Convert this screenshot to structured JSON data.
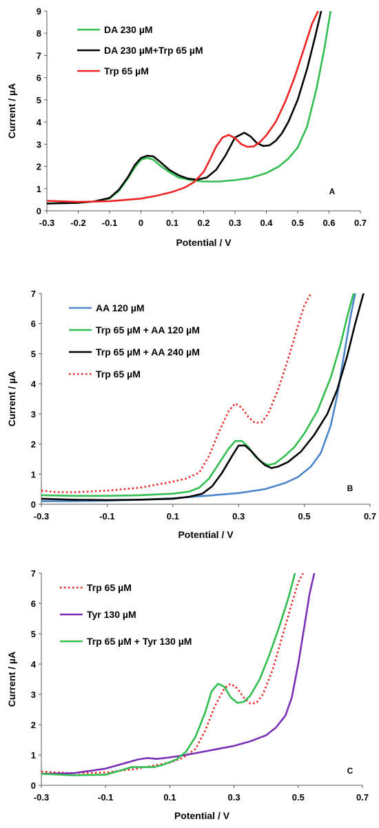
{
  "chart_data": [
    {
      "type": "line",
      "panel_label": "A",
      "xlabel": "Potential / V",
      "ylabel": "Current / µA",
      "xlim": [
        -0.3,
        0.7
      ],
      "ylim": [
        0,
        9
      ],
      "xticks": [
        "-0.3",
        "-0.2",
        "-0.1",
        "0",
        "0.1",
        "0.2",
        "0.3",
        "0.4",
        "0.5",
        "0.6",
        "0.7"
      ],
      "yticks": [
        "0",
        "1",
        "2",
        "3",
        "4",
        "5",
        "6",
        "7",
        "8",
        "9"
      ],
      "grid": false,
      "legend_position": "top-left",
      "series": [
        {
          "name": "DA 230 µM",
          "color": "#2ebd4e",
          "dash": false,
          "x": [
            -0.3,
            -0.2,
            -0.15,
            -0.1,
            -0.07,
            -0.04,
            -0.02,
            0.0,
            0.02,
            0.04,
            0.06,
            0.09,
            0.12,
            0.16,
            0.2,
            0.25,
            0.3,
            0.35,
            0.4,
            0.44,
            0.47,
            0.5,
            0.53,
            0.56,
            0.585,
            0.605
          ],
          "y": [
            0.33,
            0.36,
            0.42,
            0.55,
            0.9,
            1.5,
            1.95,
            2.3,
            2.38,
            2.3,
            2.05,
            1.75,
            1.5,
            1.38,
            1.32,
            1.32,
            1.38,
            1.48,
            1.7,
            2.0,
            2.35,
            2.85,
            3.8,
            5.5,
            7.3,
            9.0
          ]
        },
        {
          "name": "DA 230 µM+Trp 65 µM",
          "color": "#000000",
          "dash": false,
          "x": [
            -0.3,
            -0.2,
            -0.15,
            -0.1,
            -0.07,
            -0.04,
            -0.02,
            0.0,
            0.02,
            0.04,
            0.06,
            0.09,
            0.12,
            0.15,
            0.18,
            0.21,
            0.24,
            0.27,
            0.3,
            0.33,
            0.35,
            0.37,
            0.39,
            0.41,
            0.43,
            0.45,
            0.47,
            0.5,
            0.53,
            0.555,
            0.575
          ],
          "y": [
            0.33,
            0.36,
            0.42,
            0.58,
            0.95,
            1.55,
            2.05,
            2.38,
            2.48,
            2.45,
            2.22,
            1.85,
            1.6,
            1.45,
            1.4,
            1.5,
            1.85,
            2.5,
            3.3,
            3.52,
            3.35,
            3.05,
            2.92,
            2.95,
            3.15,
            3.5,
            4.0,
            5.0,
            6.4,
            7.8,
            9.0
          ]
        },
        {
          "name": "Trp 65 µM",
          "color": "#ee2222",
          "dash": false,
          "x": [
            -0.3,
            -0.2,
            -0.1,
            0.0,
            0.05,
            0.1,
            0.14,
            0.17,
            0.2,
            0.22,
            0.24,
            0.26,
            0.28,
            0.3,
            0.32,
            0.34,
            0.36,
            0.38,
            0.4,
            0.43,
            0.46,
            0.49,
            0.52,
            0.545,
            0.565
          ],
          "y": [
            0.45,
            0.4,
            0.43,
            0.55,
            0.68,
            0.85,
            1.05,
            1.3,
            1.75,
            2.3,
            2.9,
            3.3,
            3.42,
            3.28,
            3.0,
            2.88,
            2.9,
            3.1,
            3.4,
            4.0,
            4.9,
            6.0,
            7.3,
            8.4,
            9.0
          ]
        }
      ]
    },
    {
      "type": "line",
      "panel_label": "B",
      "xlabel": "Potential / V",
      "ylabel": "Current / µA",
      "xlim": [
        -0.3,
        0.7
      ],
      "ylim": [
        0,
        7
      ],
      "xticks": [
        "-0.3",
        "-0.1",
        "0.1",
        "0.3",
        "0.5",
        "0.7"
      ],
      "yticks": [
        "0",
        "1",
        "2",
        "3",
        "4",
        "5",
        "6",
        "7"
      ],
      "grid": false,
      "legend_position": "top-left",
      "series": [
        {
          "name": "AA 120 µM",
          "color": "#4a86c8",
          "dash": false,
          "x": [
            -0.3,
            -0.2,
            -0.1,
            0.0,
            0.1,
            0.2,
            0.3,
            0.38,
            0.44,
            0.48,
            0.52,
            0.55,
            0.58,
            0.6,
            0.62,
            0.64,
            0.655
          ],
          "y": [
            0.1,
            0.1,
            0.12,
            0.15,
            0.2,
            0.28,
            0.37,
            0.5,
            0.7,
            0.9,
            1.25,
            1.7,
            2.6,
            3.6,
            4.9,
            6.2,
            7.0
          ]
        },
        {
          "name": "Trp 65 µM + AA 120 µM",
          "color": "#2ebd4e",
          "dash": false,
          "x": [
            -0.3,
            -0.2,
            -0.1,
            0.0,
            0.1,
            0.15,
            0.18,
            0.21,
            0.24,
            0.27,
            0.29,
            0.31,
            0.33,
            0.35,
            0.37,
            0.39,
            0.41,
            0.44,
            0.47,
            0.5,
            0.54,
            0.58,
            0.61,
            0.63,
            0.65
          ],
          "y": [
            0.3,
            0.28,
            0.28,
            0.3,
            0.35,
            0.42,
            0.55,
            0.85,
            1.35,
            1.85,
            2.1,
            2.1,
            1.9,
            1.6,
            1.4,
            1.3,
            1.35,
            1.6,
            1.9,
            2.35,
            3.1,
            4.2,
            5.3,
            6.2,
            7.0
          ]
        },
        {
          "name": "Trp 65 µM + AA 240 µM",
          "color": "#000000",
          "dash": false,
          "x": [
            -0.3,
            -0.2,
            -0.1,
            0.0,
            0.1,
            0.15,
            0.19,
            0.22,
            0.25,
            0.28,
            0.3,
            0.32,
            0.34,
            0.36,
            0.38,
            0.4,
            0.42,
            0.45,
            0.49,
            0.53,
            0.57,
            0.6,
            0.63,
            0.655,
            0.68
          ],
          "y": [
            0.18,
            0.15,
            0.14,
            0.15,
            0.18,
            0.25,
            0.35,
            0.6,
            1.05,
            1.6,
            1.95,
            1.95,
            1.75,
            1.5,
            1.3,
            1.2,
            1.25,
            1.4,
            1.75,
            2.3,
            3.0,
            3.8,
            4.9,
            6.0,
            7.0
          ]
        },
        {
          "name": "Trp 65 µM",
          "color": "#ee2222",
          "dash": true,
          "x": [
            -0.3,
            -0.25,
            -0.2,
            -0.1,
            0.0,
            0.05,
            0.1,
            0.14,
            0.18,
            0.21,
            0.24,
            0.27,
            0.29,
            0.31,
            0.33,
            0.35,
            0.37,
            0.39,
            0.42,
            0.45,
            0.48,
            0.5,
            0.52
          ],
          "y": [
            0.45,
            0.4,
            0.4,
            0.45,
            0.55,
            0.65,
            0.75,
            0.85,
            1.05,
            1.6,
            2.4,
            3.1,
            3.35,
            3.2,
            2.9,
            2.7,
            2.72,
            3.0,
            3.8,
            4.8,
            5.9,
            6.6,
            7.0
          ]
        }
      ]
    },
    {
      "type": "line",
      "panel_label": "C",
      "xlabel": "Potential / V",
      "ylabel": "Current / µA",
      "xlim": [
        -0.3,
        0.7
      ],
      "ylim": [
        0,
        7
      ],
      "xticks": [
        "-0.3",
        "-0.1",
        "0.1",
        "0.3",
        "0.5",
        "0.7"
      ],
      "yticks": [
        "0",
        "1",
        "2",
        "3",
        "4",
        "5",
        "6",
        "7"
      ],
      "grid": false,
      "legend_position": "top-left",
      "series": [
        {
          "name": "Trp 65 µM",
          "color": "#ee2222",
          "dash": true,
          "x": [
            -0.3,
            -0.2,
            -0.1,
            0.0,
            0.05,
            0.1,
            0.14,
            0.18,
            0.21,
            0.24,
            0.27,
            0.29,
            0.31,
            0.33,
            0.35,
            0.37,
            0.39,
            0.42,
            0.45,
            0.48,
            0.5,
            0.515
          ],
          "y": [
            0.45,
            0.4,
            0.42,
            0.55,
            0.65,
            0.75,
            0.9,
            1.2,
            1.8,
            2.6,
            3.2,
            3.35,
            3.2,
            2.9,
            2.7,
            2.72,
            3.0,
            3.8,
            4.9,
            6.0,
            6.7,
            7.0
          ]
        },
        {
          "name": "Tyr 130 µM",
          "color": "#7b2fb8",
          "dash": false,
          "x": [
            -0.3,
            -0.2,
            -0.1,
            -0.05,
            0.0,
            0.03,
            0.06,
            0.1,
            0.15,
            0.2,
            0.25,
            0.3,
            0.35,
            0.4,
            0.43,
            0.46,
            0.48,
            0.5,
            0.52,
            0.535,
            0.55
          ],
          "y": [
            0.38,
            0.4,
            0.55,
            0.7,
            0.85,
            0.9,
            0.87,
            0.92,
            1.0,
            1.1,
            1.2,
            1.3,
            1.45,
            1.65,
            1.9,
            2.3,
            2.9,
            4.0,
            5.3,
            6.3,
            7.0
          ]
        },
        {
          "name": "Trp 65 µM + Tyr 130 µM",
          "color": "#2ebd4e",
          "dash": false,
          "x": [
            -0.3,
            -0.2,
            -0.1,
            -0.05,
            -0.02,
            0.02,
            0.05,
            0.08,
            0.12,
            0.15,
            0.18,
            0.21,
            0.23,
            0.25,
            0.27,
            0.29,
            0.31,
            0.33,
            0.35,
            0.38,
            0.41,
            0.44,
            0.47,
            0.49
          ],
          "y": [
            0.38,
            0.33,
            0.35,
            0.5,
            0.6,
            0.6,
            0.6,
            0.68,
            0.85,
            1.1,
            1.6,
            2.4,
            3.1,
            3.35,
            3.25,
            2.9,
            2.72,
            2.75,
            2.95,
            3.5,
            4.3,
            5.2,
            6.2,
            7.0
          ]
        }
      ]
    }
  ]
}
